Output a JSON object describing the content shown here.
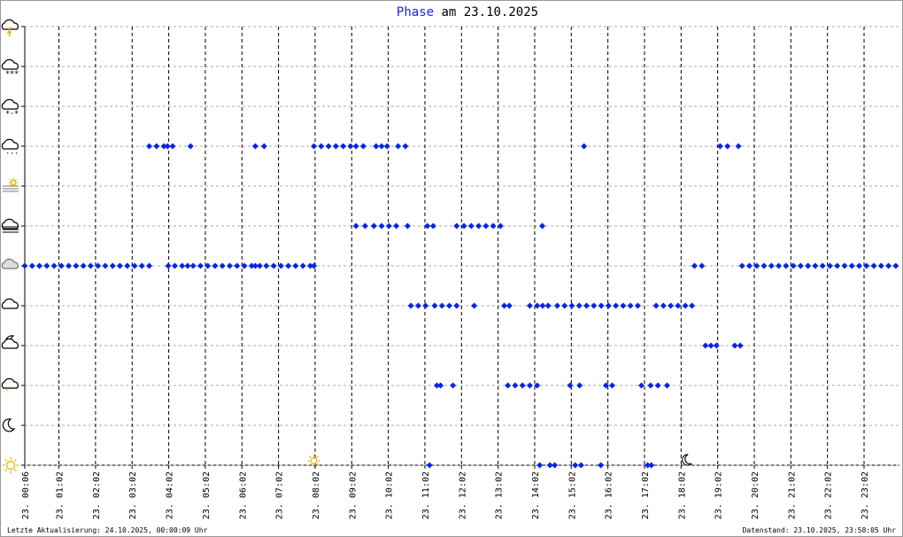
{
  "chart_data": {
    "type": "scatter",
    "title": {
      "prefix": "Phase",
      "text": "am 23.10.2025"
    },
    "footer_left": "Letzte Aktualisierung: 24.10.2025, 00:00:09 Uhr",
    "footer_right": "Datenstand: 23.10.2025, 23:58:05 Uhr",
    "color": "#0a23e6",
    "xlim": [
      0.1,
      24.0
    ],
    "ylim": [
      0,
      11
    ],
    "yticks": [
      0,
      1,
      2,
      3,
      4,
      5,
      6,
      7,
      8,
      9,
      10,
      11
    ],
    "xticks": [
      {
        "value": 0.1,
        "label": "23. 00:06"
      },
      {
        "value": 1.033,
        "label": "23. 01:02"
      },
      {
        "value": 2.033,
        "label": "23. 02:02"
      },
      {
        "value": 3.033,
        "label": "23. 03:02"
      },
      {
        "value": 4.033,
        "label": "23. 04:02"
      },
      {
        "value": 5.033,
        "label": "23. 05:02"
      },
      {
        "value": 6.033,
        "label": "23. 06:02"
      },
      {
        "value": 7.033,
        "label": "23. 07:02"
      },
      {
        "value": 8.033,
        "label": "23. 08:02"
      },
      {
        "value": 9.033,
        "label": "23. 09:02"
      },
      {
        "value": 10.033,
        "label": "23. 10:02"
      },
      {
        "value": 11.033,
        "label": "23. 11:02"
      },
      {
        "value": 12.033,
        "label": "23. 12:02"
      },
      {
        "value": 13.033,
        "label": "23. 13:02"
      },
      {
        "value": 14.033,
        "label": "23. 14:02"
      },
      {
        "value": 15.033,
        "label": "23. 15:02"
      },
      {
        "value": 16.033,
        "label": "23. 16:02"
      },
      {
        "value": 17.033,
        "label": "23. 17:02"
      },
      {
        "value": 18.033,
        "label": "23. 18:02"
      },
      {
        "value": 19.033,
        "label": "23. 19:02"
      },
      {
        "value": 20.033,
        "label": "23. 20:02"
      },
      {
        "value": 21.033,
        "label": "23. 21:02"
      },
      {
        "value": 22.033,
        "label": "23. 22:02"
      },
      {
        "value": 23.033,
        "label": "23. 23:02"
      }
    ],
    "grid": true,
    "sunrise": 8.0,
    "sunset": 18.15,
    "series": [
      {
        "x": [
          3.5,
          3.7,
          3.9,
          4.0,
          4.14,
          4.63,
          6.4,
          6.64,
          8.0,
          8.2,
          8.4,
          8.6,
          8.8,
          9.0,
          9.15,
          9.35,
          9.7,
          9.85,
          10.0,
          10.3,
          10.5,
          15.38,
          19.1,
          19.3,
          19.6
        ],
        "values": [
          8,
          8,
          8,
          8,
          8,
          8,
          8,
          8,
          8,
          8,
          8,
          8,
          8,
          8,
          8,
          8,
          8,
          8,
          8,
          8,
          8,
          8,
          8,
          8,
          8
        ]
      },
      {
        "x": [
          9.15,
          9.4,
          9.64,
          9.85,
          10.05,
          10.25,
          10.56,
          11.1,
          11.26,
          11.9,
          12.1,
          12.3,
          12.5,
          12.7,
          12.9,
          13.1,
          14.24
        ],
        "values": [
          6,
          6,
          6,
          6,
          6,
          6,
          6,
          6,
          6,
          6,
          6,
          6,
          6,
          6,
          6,
          6,
          6
        ]
      },
      {
        "x": [
          0.1,
          0.3,
          0.5,
          0.7,
          0.9,
          1.1,
          1.3,
          1.5,
          1.7,
          1.9,
          2.1,
          2.3,
          2.5,
          2.7,
          2.9,
          3.1,
          3.3,
          3.5,
          4.02,
          4.2,
          4.4,
          4.55,
          4.7,
          4.9,
          5.1,
          5.3,
          5.5,
          5.7,
          5.9,
          6.1,
          6.3,
          6.4,
          6.52,
          6.7,
          6.9,
          7.1,
          7.3,
          7.5,
          7.7,
          7.9,
          8.0,
          18.4,
          18.6,
          19.7,
          19.9,
          20.1,
          20.3,
          20.5,
          20.7,
          20.9,
          21.1,
          21.3,
          21.5,
          21.7,
          21.9,
          22.1,
          22.3,
          22.5,
          22.7,
          22.9,
          23.1,
          23.3,
          23.5,
          23.7,
          23.9
        ],
        "values": [
          5,
          5,
          5,
          5,
          5,
          5,
          5,
          5,
          5,
          5,
          5,
          5,
          5,
          5,
          5,
          5,
          5,
          5,
          5,
          5,
          5,
          5,
          5,
          5,
          5,
          5,
          5,
          5,
          5,
          5,
          5,
          5,
          5,
          5,
          5,
          5,
          5,
          5,
          5,
          5,
          5,
          5,
          5,
          5,
          5,
          5,
          5,
          5,
          5,
          5,
          5,
          5,
          5,
          5,
          5,
          5,
          5,
          5,
          5,
          5,
          5,
          5,
          5,
          5,
          5
        ]
      },
      {
        "x": [
          10.65,
          10.85,
          11.05,
          11.3,
          11.5,
          11.7,
          11.9,
          12.38,
          13.2,
          13.34,
          13.9,
          14.1,
          14.25,
          14.4,
          14.65,
          14.85,
          15.05,
          15.25,
          15.45,
          15.65,
          15.85,
          16.05,
          16.25,
          16.45,
          16.65,
          16.85,
          17.35,
          17.55,
          17.75,
          17.95,
          18.15,
          18.33
        ],
        "values": [
          4,
          4,
          4,
          4,
          4,
          4,
          4,
          4,
          4,
          4,
          4,
          4,
          4,
          4,
          4,
          4,
          4,
          4,
          4,
          4,
          4,
          4,
          4,
          4,
          4,
          4,
          4,
          4,
          4,
          4,
          4,
          4
        ]
      },
      {
        "x": [
          18.7,
          18.85,
          19.0,
          19.5,
          19.65
        ],
        "values": [
          3,
          3,
          3,
          3,
          3
        ]
      },
      {
        "x": [
          11.36,
          11.46,
          11.8,
          13.3,
          13.5,
          13.7,
          13.9,
          14.1,
          15.0,
          15.26,
          15.98,
          16.15,
          16.95,
          17.2,
          17.4,
          17.65
        ],
        "values": [
          2,
          2,
          2,
          2,
          2,
          2,
          2,
          2,
          2,
          2,
          2,
          2,
          2,
          2,
          2,
          2
        ]
      },
      {
        "x": [
          11.16,
          14.17,
          14.45,
          14.58,
          15.14,
          15.3,
          15.84,
          17.12,
          17.22
        ],
        "values": [
          0,
          0,
          0,
          0,
          0,
          0,
          0,
          0,
          0
        ]
      }
    ]
  }
}
